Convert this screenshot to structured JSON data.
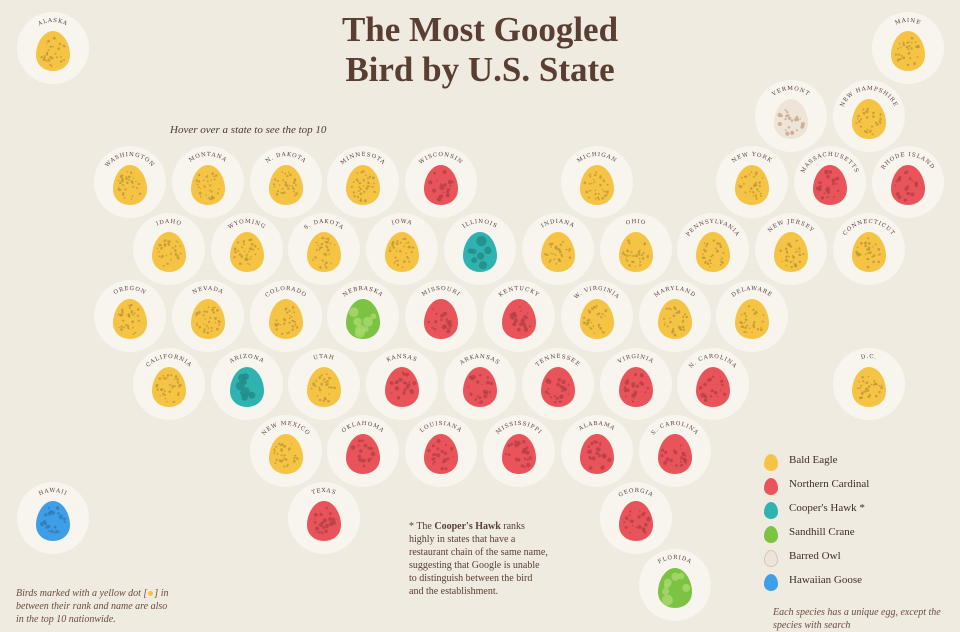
{
  "title_line1": "The Most Googled",
  "title_line2": "Bird by U.S. State",
  "hint": "Hover over a state to see the top 10",
  "colors": {
    "bald_eagle": "#f6c445",
    "northern_cardinal": "#e9545a",
    "coopers_hawk": "#2fb3b0",
    "sandhill_crane": "#7cc243",
    "barred_owl": "#efe4d8",
    "hawaiian_goose": "#3f9ee8"
  },
  "legend": [
    {
      "key": "bald_eagle",
      "label": "Bald Eagle"
    },
    {
      "key": "northern_cardinal",
      "label": "Northern Cardinal"
    },
    {
      "key": "coopers_hawk",
      "label": "Cooper's Hawk *"
    },
    {
      "key": "sandhill_crane",
      "label": "Sandhill Crane"
    },
    {
      "key": "barred_owl",
      "label": "Barred Owl"
    },
    {
      "key": "hawaiian_goose",
      "label": "Hawaiian Goose"
    }
  ],
  "note": {
    "prefix": "* The ",
    "bold": "Cooper's Hawk",
    "rest": " ranks highly in states that have a restaurant chain of the same name, suggesting that Google is unable to distinguish between the bird and the establishment."
  },
  "bottom_left": {
    "before": "Birds marked with a yellow dot [",
    "after": "] in between their rank and name are also in the top 10 nationwide."
  },
  "bottom_right": "Each species has a unique egg, except the species with search",
  "chart_data": {
    "type": "table",
    "columns": [
      "state",
      "most_googled_bird"
    ],
    "rows": [
      {
        "state": "ALASKA",
        "bird": "bald_eagle"
      },
      {
        "state": "MAINE",
        "bird": "bald_eagle"
      },
      {
        "state": "VERMONT",
        "bird": "barred_owl"
      },
      {
        "state": "NEW HAMPSHIRE",
        "bird": "bald_eagle"
      },
      {
        "state": "WASHINGTON",
        "bird": "bald_eagle"
      },
      {
        "state": "MONTANA",
        "bird": "bald_eagle"
      },
      {
        "state": "N. DAKOTA",
        "bird": "bald_eagle"
      },
      {
        "state": "MINNESOTA",
        "bird": "bald_eagle"
      },
      {
        "state": "WISCONSIN",
        "bird": "northern_cardinal"
      },
      {
        "state": "MICHIGAN",
        "bird": "bald_eagle"
      },
      {
        "state": "NEW YORK",
        "bird": "bald_eagle"
      },
      {
        "state": "MASSACHUSETTS",
        "bird": "northern_cardinal"
      },
      {
        "state": "RHODE ISLAND",
        "bird": "northern_cardinal"
      },
      {
        "state": "IDAHO",
        "bird": "bald_eagle"
      },
      {
        "state": "WYOMING",
        "bird": "bald_eagle"
      },
      {
        "state": "S. DAKOTA",
        "bird": "bald_eagle"
      },
      {
        "state": "IOWA",
        "bird": "bald_eagle"
      },
      {
        "state": "ILLINOIS",
        "bird": "coopers_hawk"
      },
      {
        "state": "INDIANA",
        "bird": "bald_eagle"
      },
      {
        "state": "OHIO",
        "bird": "bald_eagle"
      },
      {
        "state": "PENNSYLVANIA",
        "bird": "bald_eagle"
      },
      {
        "state": "NEW JERSEY",
        "bird": "bald_eagle"
      },
      {
        "state": "CONNECTICUT",
        "bird": "bald_eagle"
      },
      {
        "state": "OREGON",
        "bird": "bald_eagle"
      },
      {
        "state": "NEVADA",
        "bird": "bald_eagle"
      },
      {
        "state": "COLORADO",
        "bird": "bald_eagle"
      },
      {
        "state": "NEBRASKA",
        "bird": "sandhill_crane"
      },
      {
        "state": "MISSOURI",
        "bird": "northern_cardinal"
      },
      {
        "state": "KENTUCKY",
        "bird": "northern_cardinal"
      },
      {
        "state": "W. VIRGINIA",
        "bird": "bald_eagle"
      },
      {
        "state": "MARYLAND",
        "bird": "bald_eagle"
      },
      {
        "state": "DELAWARE",
        "bird": "bald_eagle"
      },
      {
        "state": "CALIFORNIA",
        "bird": "bald_eagle"
      },
      {
        "state": "ARIZONA",
        "bird": "coopers_hawk"
      },
      {
        "state": "UTAH",
        "bird": "bald_eagle"
      },
      {
        "state": "KANSAS",
        "bird": "northern_cardinal"
      },
      {
        "state": "ARKANSAS",
        "bird": "northern_cardinal"
      },
      {
        "state": "TENNESSEE",
        "bird": "northern_cardinal"
      },
      {
        "state": "VIRGINIA",
        "bird": "northern_cardinal"
      },
      {
        "state": "N. CAROLINA",
        "bird": "northern_cardinal"
      },
      {
        "state": "D.C.",
        "bird": "bald_eagle"
      },
      {
        "state": "NEW MEXICO",
        "bird": "bald_eagle"
      },
      {
        "state": "OKLAHOMA",
        "bird": "northern_cardinal"
      },
      {
        "state": "LOUISIANA",
        "bird": "northern_cardinal"
      },
      {
        "state": "MISSISSIPPI",
        "bird": "northern_cardinal"
      },
      {
        "state": "ALABAMA",
        "bird": "northern_cardinal"
      },
      {
        "state": "S. CAROLINA",
        "bird": "northern_cardinal"
      },
      {
        "state": "HAWAII",
        "bird": "hawaiian_goose"
      },
      {
        "state": "TEXAS",
        "bird": "northern_cardinal"
      },
      {
        "state": "GEORGIA",
        "bird": "northern_cardinal"
      },
      {
        "state": "FLORIDA",
        "bird": "sandhill_crane"
      }
    ]
  }
}
